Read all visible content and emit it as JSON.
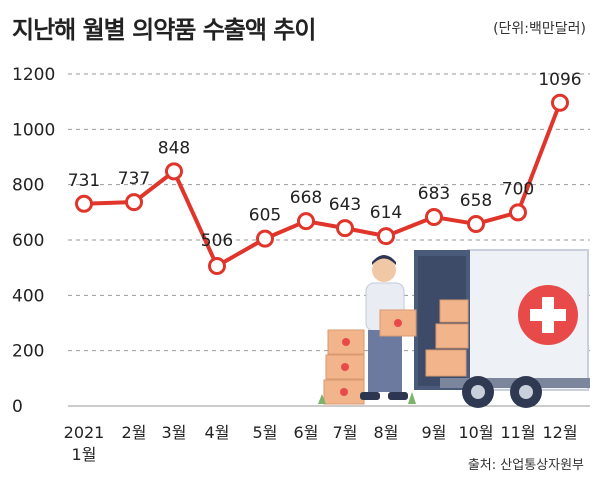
{
  "title": "지난해 월별 의약품 수출액 추이",
  "unit_note": "(단위:백만달러)",
  "source": "출처: 산업통상자원부",
  "chart_data": {
    "type": "line",
    "categories": [
      "2021\n1월",
      "2월",
      "3월",
      "4월",
      "5월",
      "6월",
      "7월",
      "8월",
      "9월",
      "10월",
      "11월",
      "12월"
    ],
    "values": [
      731,
      737,
      848,
      506,
      605,
      668,
      643,
      614,
      683,
      658,
      700,
      1096
    ],
    "data_labels": [
      "731",
      "737",
      "848",
      "506",
      "605",
      "668",
      "643",
      "614",
      "683",
      "658",
      "700",
      "1096"
    ],
    "yticks": [
      "0",
      "200",
      "400",
      "600",
      "800",
      "1000",
      "1200"
    ],
    "ylim": [
      0,
      1200
    ],
    "grid": "horizontal-dashed",
    "line_color": "#e0352b",
    "marker_fill": "#ffffff",
    "title": "지난해 월별 의약품 수출액 추이",
    "xlabel": "",
    "ylabel": ""
  },
  "illustration": {
    "description_icon": "delivery-worker-with-truck-illustration",
    "cross_color": "#e84a4a",
    "box_color": "#f2b48a"
  }
}
